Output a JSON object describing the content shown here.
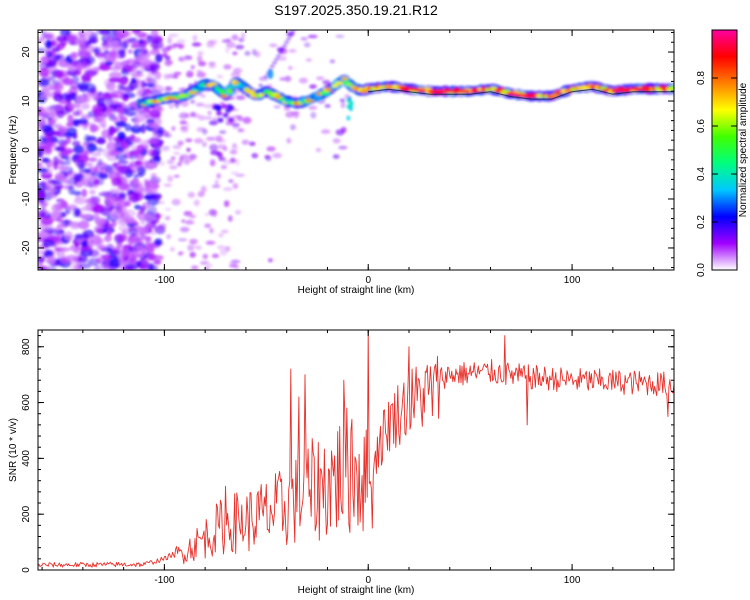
{
  "title": "S197.2025.350.19.21.R12",
  "chart_data": [
    {
      "type": "heatmap",
      "xlabel": "Height of straight line (km)",
      "ylabel": "Frequency (Hz)",
      "xlim": [
        -162,
        150
      ],
      "ylim": [
        -24.5,
        24.5
      ],
      "xticks": [
        -100,
        0,
        100
      ],
      "yticks": [
        -20,
        -10,
        0,
        10,
        20
      ],
      "ridge": [
        [
          -110,
          9.5
        ],
        [
          -100,
          10.5
        ],
        [
          -90,
          11.0
        ],
        [
          -80,
          13.5
        ],
        [
          -75,
          13.0
        ],
        [
          -70,
          11.0
        ],
        [
          -65,
          14.0
        ],
        [
          -60,
          12.5
        ],
        [
          -55,
          11.0
        ],
        [
          -50,
          12.0
        ],
        [
          -45,
          11.0
        ],
        [
          -40,
          10.0
        ],
        [
          -35,
          9.5
        ],
        [
          -30,
          10.0
        ],
        [
          -25,
          11.0
        ],
        [
          -20,
          12.0
        ],
        [
          -15,
          13.5
        ],
        [
          -12,
          14.5
        ],
        [
          -8,
          13.0
        ],
        [
          -3,
          12.0
        ],
        [
          0,
          12.5
        ],
        [
          10,
          13.0
        ],
        [
          30,
          12.0
        ],
        [
          50,
          12.0
        ],
        [
          60,
          12.5
        ],
        [
          70,
          11.5
        ],
        [
          80,
          11.0
        ],
        [
          90,
          11.0
        ],
        [
          100,
          12.5
        ],
        [
          110,
          13.0
        ],
        [
          120,
          12.0
        ],
        [
          130,
          12.5
        ],
        [
          150,
          12.5
        ]
      ],
      "colorbar": {
        "label": "Normalized spectral amplitude",
        "ticks": [
          0.0,
          0.2,
          0.4,
          0.6,
          0.8
        ],
        "tick_labels": [
          "0.0",
          "0.2",
          "0.4",
          "0.6",
          "0.8"
        ],
        "range": [
          0,
          1
        ],
        "colors": [
          "#ffffff",
          "#a000ff",
          "#0000ff",
          "#00c8ff",
          "#00ff80",
          "#40ff00",
          "#ffff00",
          "#ff8000",
          "#ff0000",
          "#ff00a0"
        ]
      }
    },
    {
      "type": "line",
      "xlabel": "Height of straight line (km)",
      "ylabel": "SNR (10 * v/v)",
      "xlim": [
        -162,
        150
      ],
      "ylim": [
        0,
        860
      ],
      "xticks": [
        -100,
        0,
        100
      ],
      "yticks": [
        0,
        200,
        400,
        600,
        800
      ],
      "series": [
        {
          "name": "SNR",
          "color": "#e8302a",
          "envelope": [
            [
              -162,
              18
            ],
            [
              -110,
              20
            ],
            [
              -100,
              40
            ],
            [
              -90,
              80
            ],
            [
              -80,
              140
            ],
            [
              -70,
              200
            ],
            [
              -60,
              210
            ],
            [
              -50,
              240
            ],
            [
              -40,
              270
            ],
            [
              -30,
              330
            ],
            [
              -20,
              370
            ],
            [
              -10,
              430
            ],
            [
              -5,
              430
            ],
            [
              0,
              360
            ],
            [
              5,
              470
            ],
            [
              10,
              560
            ],
            [
              20,
              640
            ],
            [
              30,
              680
            ],
            [
              40,
              700
            ],
            [
              60,
              710
            ],
            [
              80,
              690
            ],
            [
              100,
              680
            ],
            [
              120,
              675
            ],
            [
              150,
              665
            ]
          ],
          "spikes": [
            [
              -70,
              300
            ],
            [
              -38,
              720
            ],
            [
              -34,
              620
            ],
            [
              -31,
              700
            ],
            [
              -12,
              680
            ],
            [
              -8,
              540
            ],
            [
              0,
              860
            ],
            [
              2,
              150
            ],
            [
              20,
              800
            ],
            [
              67,
              840
            ],
            [
              78,
              520
            ],
            [
              147,
              550
            ]
          ]
        }
      ]
    }
  ]
}
